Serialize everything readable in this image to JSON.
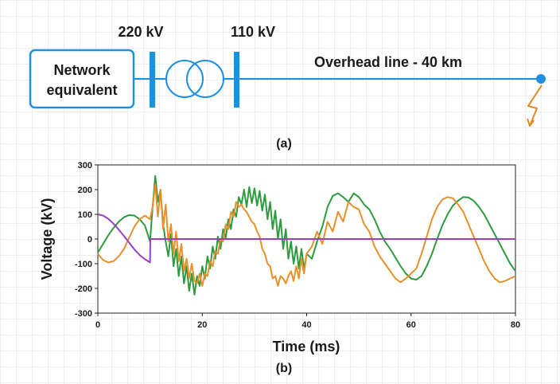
{
  "diagram": {
    "voltage_hv": "220 kV",
    "voltage_mv": "110 kV",
    "network_label_line1": "Network",
    "network_label_line2": "equivalent",
    "line_label": "Overhead line - 40 km",
    "caption": "(a)",
    "colors": {
      "line": "#1e90e0",
      "fault": "#e58a1f"
    },
    "fault_icon": "lightning-bolt-icon"
  },
  "chart_data": {
    "type": "line",
    "caption": "(b)",
    "xlabel": "Time (ms)",
    "ylabel": "Voltage (kV)",
    "xlim": [
      0,
      80
    ],
    "ylim": [
      -300,
      300
    ],
    "xticks": [
      "0",
      "20",
      "40",
      "60",
      "80"
    ],
    "yticks": [
      "300",
      "200",
      "100",
      "0",
      "-100",
      "-200",
      "-300"
    ],
    "grid": false,
    "series": [
      {
        "color": "#2e9b3e",
        "x": [
          0,
          1,
          2,
          3,
          4,
          5,
          6,
          7,
          8,
          9,
          10,
          10.5,
          11,
          11.5,
          12,
          12.5,
          13,
          13.5,
          14,
          14.5,
          15,
          15.5,
          16,
          16.5,
          17,
          17.5,
          18,
          18.5,
          19,
          19.5,
          20,
          20.5,
          21,
          21.5,
          22,
          22.5,
          23,
          23.5,
          24,
          24.5,
          25,
          25.5,
          26,
          26.5,
          27,
          27.5,
          28,
          28.5,
          29,
          29.5,
          30,
          30.5,
          31,
          31.5,
          32,
          32.5,
          33,
          33.5,
          34,
          34.5,
          35,
          35.5,
          36,
          36.5,
          37,
          37.5,
          38,
          38.5,
          39,
          39.5,
          40,
          41,
          42,
          43,
          44,
          45,
          46,
          47,
          48,
          49,
          50,
          51,
          52,
          53,
          54,
          55,
          56,
          57,
          58,
          59,
          60,
          61,
          62,
          63,
          64,
          65,
          66,
          67,
          68,
          69,
          70,
          71,
          72,
          73,
          74,
          75,
          76,
          77,
          78,
          79,
          80
        ],
        "y": [
          -55,
          -20,
          15,
          45,
          70,
          88,
          97,
          95,
          80,
          55,
          -10,
          130,
          255,
          150,
          200,
          60,
          -10,
          -70,
          20,
          -110,
          -40,
          -150,
          -70,
          -180,
          -110,
          -210,
          -140,
          -225,
          -150,
          -190,
          -110,
          -160,
          -70,
          -120,
          -30,
          -80,
          10,
          -40,
          40,
          5,
          80,
          40,
          120,
          90,
          170,
          140,
          200,
          130,
          210,
          145,
          205,
          135,
          195,
          115,
          180,
          80,
          150,
          40,
          115,
          0,
          80,
          -40,
          40,
          -80,
          -10,
          -100,
          -30,
          -120,
          -40,
          -120,
          -60,
          -80,
          -10,
          50,
          130,
          175,
          185,
          170,
          150,
          185,
          170,
          140,
          120,
          80,
          30,
          -10,
          -40,
          -75,
          -110,
          -140,
          -160,
          -165,
          -150,
          -110,
          -60,
          0,
          55,
          100,
          135,
          155,
          170,
          168,
          155,
          130,
          100,
          60,
          20,
          -20,
          -60,
          -100,
          -130
        ]
      },
      {
        "color": "#e8902a",
        "x": [
          0,
          1,
          2,
          3,
          4,
          5,
          6,
          7,
          8,
          9,
          10,
          10.5,
          11,
          11.5,
          12,
          12.5,
          13,
          13.5,
          14,
          14.5,
          15,
          15.5,
          16,
          16.5,
          17,
          17.5,
          18,
          18.5,
          19,
          19.5,
          20,
          20.5,
          21,
          21.5,
          22,
          22.5,
          23,
          23.5,
          24,
          24.5,
          25,
          25.5,
          26,
          26.5,
          27,
          27.5,
          28,
          28.5,
          29,
          29.5,
          30,
          30.5,
          31,
          31.5,
          32,
          32.5,
          33,
          33.5,
          34,
          34.5,
          35,
          35.5,
          36,
          36.5,
          37,
          37.5,
          38,
          38.5,
          39,
          39.5,
          40,
          41,
          42,
          43,
          44,
          45,
          46,
          47,
          48,
          49,
          50,
          51,
          52,
          53,
          54,
          55,
          56,
          57,
          58,
          59,
          60,
          61,
          62,
          63,
          64,
          65,
          66,
          67,
          68,
          69,
          70,
          71,
          72,
          73,
          74,
          75,
          76,
          77,
          78,
          79,
          80
        ],
        "y": [
          -60,
          -85,
          -95,
          -90,
          -70,
          -40,
          5,
          50,
          80,
          95,
          80,
          130,
          220,
          90,
          200,
          40,
          140,
          -10,
          60,
          -60,
          30,
          -90,
          -20,
          -130,
          -80,
          -160,
          -100,
          -170,
          -180,
          -140,
          -190,
          -140,
          -150,
          -90,
          -110,
          -50,
          -60,
          0,
          -10,
          60,
          40,
          110,
          90,
          150,
          130,
          140,
          120,
          110,
          90,
          70,
          60,
          30,
          10,
          -40,
          -60,
          -100,
          -110,
          -160,
          -150,
          -190,
          -150,
          -160,
          -180,
          -150,
          -130,
          -170,
          -110,
          -160,
          -80,
          -140,
          -60,
          -30,
          30,
          -20,
          70,
          30,
          110,
          70,
          150,
          130,
          120,
          60,
          30,
          -30,
          -70,
          -100,
          -130,
          -160,
          -175,
          -160,
          -140,
          -120,
          -60,
          10,
          80,
          130,
          160,
          170,
          165,
          140,
          110,
          60,
          10,
          -40,
          -90,
          -130,
          -160,
          -175,
          -170,
          -160,
          -150
        ]
      },
      {
        "color": "#9a3fc2",
        "x": [
          0,
          1,
          2,
          3,
          4,
          5,
          6,
          7,
          8,
          9,
          10,
          10.05,
          80
        ],
        "y": [
          100,
          95,
          82,
          62,
          38,
          12,
          -15,
          -42,
          -65,
          -82,
          -95,
          0,
          0
        ]
      }
    ]
  }
}
